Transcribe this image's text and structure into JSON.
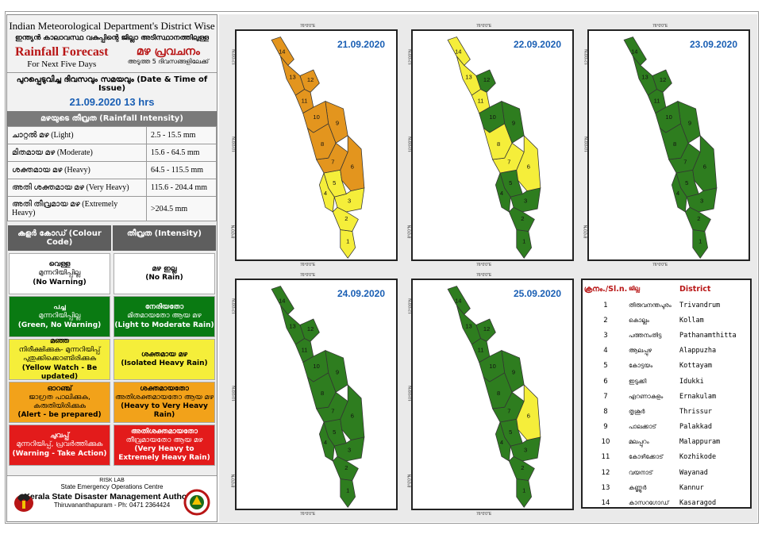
{
  "header": {
    "line1": "Indian Meteorological Department's District Wise",
    "line2": "ഇന്ത്യൻ കാലാവസ്ഥ വകുപ്പിന്റെ ജില്ലാ അടിസ്ഥാനത്തിലുള്ള",
    "title_en": "Rainfall Forecast",
    "subtitle_en": "For Next Five Days",
    "title_ml": "മഴ പ്രവചനം",
    "subtitle_ml": "അടുത്ത 5 ദിവസങ്ങളിലേക്ക്"
  },
  "issue": {
    "label": "പുറപ്പെടുവിച്ച ദിവസവും സമയവും (Date & Time of Issue)",
    "datetime": "21.09.2020  13 hrs"
  },
  "intensity": {
    "heading": "മഴയുടെ തീവ്രത (Rainfall Intensity)",
    "rows": [
      {
        "label": "ചാറ്റൽ മഴ (Light)",
        "range": "2.5 - 15.5 mm"
      },
      {
        "label": "മിതമായ മഴ (Moderate)",
        "range": "15.6 - 64.5 mm"
      },
      {
        "label": "ശക്തമായ മഴ (Heavy)",
        "range": "64.5 - 115.5 mm"
      },
      {
        "label": "അതി ശക്തമായ മഴ (Very Heavy)",
        "range": "115.6 - 204.4 mm"
      },
      {
        "label": "അതി തീവ്രമായ മഴ (Extremely Heavy)",
        "range": ">204.5 mm"
      }
    ]
  },
  "colour_code": {
    "head_left": "കളർ കോഡ് (Colour Code)",
    "head_right": "തീവ്രത (Intensity)",
    "rows": [
      {
        "color": "#ffffff",
        "left_ml1": "വെള്ള",
        "left_ml2": "മുന്നറിയിപ്പില്ല",
        "left_en": "(No Warning)",
        "right_ml1": "മഴ ഇല്ല",
        "right_ml2": "",
        "right_en": "(No Rain)"
      },
      {
        "color": "#0a7a12",
        "left_ml1": "പച്ച",
        "left_ml2": "മുന്നറിയിപ്പില്ല",
        "left_en": "(Green, No Warning)",
        "right_ml1": "നേരിയതോ",
        "right_ml2": "മിതമായതോ ആയ മഴ",
        "right_en": "(Light to Moderate Rain)"
      },
      {
        "color": "#f5ee3a",
        "left_ml1": "മഞ്ഞ",
        "left_ml2": "നിരീക്ഷിക്കുക- മുന്നറിയിപ്പ് പുതുക്കിക്കൊണ്ടിരിക്കുക",
        "left_en": "(Yellow Watch - Be updated)",
        "right_ml1": "ശക്തമായ മഴ",
        "right_ml2": "",
        "right_en": "(Isolated Heavy Rain)"
      },
      {
        "color": "#f2a21a",
        "left_ml1": "ഓറഞ്ച്",
        "left_ml2": "ജാഗ്രത പാലിക്കുക, കരുതിയിരിക്കുക",
        "left_en": "(Alert - be prepared)",
        "right_ml1": "ശക്തമായതോ",
        "right_ml2": "അതിശക്തമായതോ ആയ മഴ",
        "right_en": "(Heavy to Very Heavy Rain)"
      },
      {
        "color": "#e31b1b",
        "left_ml1": "ചുവപ്പ്",
        "left_ml2": "മുന്നറിയിപ്പ്, പ്രവർത്തിക്കുക",
        "left_en": "(Warning - Take Action)",
        "right_ml1": "അതിശക്തമായതോ",
        "right_ml2": "തീവ്രമായതോ ആയ മഴ",
        "right_en": "(Very Heavy to Extremely Heavy Rain)"
      }
    ]
  },
  "footer": {
    "lab": "RISK LAB",
    "centre": "State Emergency Operations Centre",
    "authority": "Kerala State Disaster Management Authority",
    "address": "Thiruvananthapuram - Ph: 0471 2364424"
  },
  "maps": [
    {
      "date": "21.09.2020",
      "colors": {
        "1": "#f5ee3a",
        "2": "#f5ee3a",
        "3": "#f5ee3a",
        "4": "#f5ee3a",
        "5": "#f5ee3a",
        "6": "#e3951e",
        "7": "#e3951e",
        "8": "#e3951e",
        "9": "#e3951e",
        "10": "#e3951e",
        "11": "#e3951e",
        "12": "#e3951e",
        "13": "#e3951e",
        "14": "#e3951e"
      }
    },
    {
      "date": "22.09.2020",
      "colors": {
        "1": "#2e7d1f",
        "2": "#2e7d1f",
        "3": "#2e7d1f",
        "4": "#2e7d1f",
        "5": "#2e7d1f",
        "6": "#f5ee3a",
        "7": "#f5ee3a",
        "8": "#f5ee3a",
        "9": "#2e7d1f",
        "10": "#2e7d1f",
        "11": "#f5ee3a",
        "12": "#2e7d1f",
        "13": "#f5ee3a",
        "14": "#f5ee3a"
      }
    },
    {
      "date": "23.09.2020",
      "colors": {
        "1": "#2e7d1f",
        "2": "#2e7d1f",
        "3": "#2e7d1f",
        "4": "#2e7d1f",
        "5": "#2e7d1f",
        "6": "#2e7d1f",
        "7": "#2e7d1f",
        "8": "#2e7d1f",
        "9": "#2e7d1f",
        "10": "#2e7d1f",
        "11": "#2e7d1f",
        "12": "#2e7d1f",
        "13": "#2e7d1f",
        "14": "#2e7d1f"
      }
    },
    {
      "date": "24.09.2020",
      "colors": {
        "1": "#2e7d1f",
        "2": "#2e7d1f",
        "3": "#2e7d1f",
        "4": "#2e7d1f",
        "5": "#2e7d1f",
        "6": "#2e7d1f",
        "7": "#2e7d1f",
        "8": "#2e7d1f",
        "9": "#2e7d1f",
        "10": "#2e7d1f",
        "11": "#2e7d1f",
        "12": "#2e7d1f",
        "13": "#2e7d1f",
        "14": "#2e7d1f"
      }
    },
    {
      "date": "25.09.2020",
      "colors": {
        "1": "#2e7d1f",
        "2": "#2e7d1f",
        "3": "#2e7d1f",
        "4": "#2e7d1f",
        "5": "#2e7d1f",
        "6": "#f5ee3a",
        "7": "#2e7d1f",
        "8": "#2e7d1f",
        "9": "#2e7d1f",
        "10": "#2e7d1f",
        "11": "#2e7d1f",
        "12": "#2e7d1f",
        "13": "#2e7d1f",
        "14": "#2e7d1f"
      }
    }
  ],
  "map_ticks": {
    "top": "76°0'0\"E",
    "bottom": "76°0'0\"E",
    "lat1": "12°0'0\"N",
    "lat2": "10°0'0\"N",
    "lat3": "8°0'0\"N"
  },
  "district_table": {
    "head_no": "ക്രനം./Sl.n.",
    "head_ml": "ജില്ല",
    "head_en": "District",
    "rows": [
      {
        "no": "1",
        "ml": "തിരുവനന്തപുരം",
        "en": "Trivandrum"
      },
      {
        "no": "2",
        "ml": "കൊല്ലം",
        "en": "Kollam"
      },
      {
        "no": "3",
        "ml": "പത്തനംതിട്ട",
        "en": "Pathanamthitta"
      },
      {
        "no": "4",
        "ml": "ആലപ്പുഴ",
        "en": "Alappuzha"
      },
      {
        "no": "5",
        "ml": "കോട്ടയം",
        "en": "Kottayam"
      },
      {
        "no": "6",
        "ml": "ഇടുക്കി",
        "en": "Idukki"
      },
      {
        "no": "7",
        "ml": "എറണാകുളം",
        "en": "Ernakulam"
      },
      {
        "no": "8",
        "ml": "തൃശൂർ",
        "en": "Thrissur"
      },
      {
        "no": "9",
        "ml": "പാലക്കാട്",
        "en": "Palakkad"
      },
      {
        "no": "10",
        "ml": "മലപ്പുറം",
        "en": "Malappuram"
      },
      {
        "no": "11",
        "ml": "കോഴിക്കോട്",
        "en": "Kozhikode"
      },
      {
        "no": "12",
        "ml": "വയനാട്",
        "en": "Wayanad"
      },
      {
        "no": "13",
        "ml": "കണ്ണൂർ",
        "en": "Kannur"
      },
      {
        "no": "14",
        "ml": "കാസറഗോഡ്",
        "en": "Kasaragod"
      }
    ]
  }
}
